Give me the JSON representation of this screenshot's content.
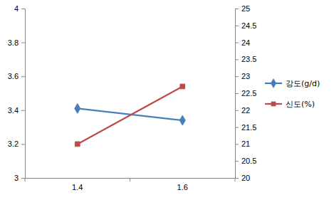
{
  "chart_data": {
    "type": "line",
    "categories": [
      "1.4",
      "1.6"
    ],
    "series": [
      {
        "name": "강도(g/d)",
        "color": "#4a7ebb",
        "marker": "diamond",
        "values": [
          3.41,
          3.34
        ]
      },
      {
        "name": "신도(%)",
        "color": "#be4b48",
        "marker": "square",
        "axis": "y2",
        "values": [
          21.0,
          22.7
        ]
      }
    ],
    "ylim": [
      3,
      4
    ],
    "yticks": [
      3,
      3.2,
      3.4,
      3.6,
      3.8,
      4
    ],
    "y2lim": [
      20,
      25
    ],
    "y2ticks": [
      20,
      20.5,
      21,
      21.5,
      22,
      22.5,
      23,
      23.5,
      24,
      24.5,
      25
    ],
    "grid": false,
    "legend": "right"
  }
}
